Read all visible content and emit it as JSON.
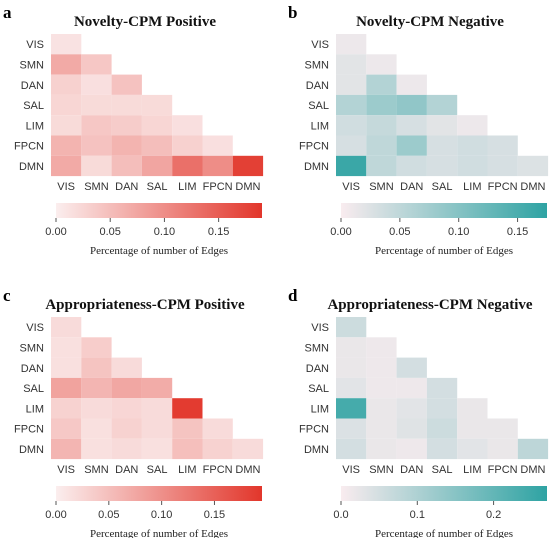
{
  "chart_data": [
    {
      "type": "heatmap",
      "panel_label": "a",
      "title": "Novelty-CPM Positive",
      "rows": [
        "VIS",
        "SMN",
        "DAN",
        "SAL",
        "LIM",
        "FPCN",
        "DMN"
      ],
      "cols": [
        "VIS",
        "SMN",
        "DAN",
        "SAL",
        "LIM",
        "FPCN",
        "DMN"
      ],
      "colorbar": {
        "label": "Percentage of number of Edges",
        "ticks": [
          0.0,
          0.05,
          0.1,
          0.15
        ],
        "tick_labels": [
          "0.00",
          "0.05",
          "0.10",
          "0.15"
        ],
        "range": [
          0,
          0.19
        ],
        "colors": [
          "#fbeeee",
          "#e2362b"
        ]
      },
      "values": [
        [
          0.012
        ],
        [
          0.07,
          0.04
        ],
        [
          0.03,
          0.015,
          0.045
        ],
        [
          0.025,
          0.02,
          0.02,
          0.02
        ],
        [
          0.02,
          0.04,
          0.035,
          0.025,
          0.015
        ],
        [
          0.06,
          0.045,
          0.06,
          0.05,
          0.03,
          0.015
        ],
        [
          0.07,
          0.02,
          0.05,
          0.075,
          0.13,
          0.1,
          0.18
        ]
      ]
    },
    {
      "type": "heatmap",
      "panel_label": "b",
      "title": "Novelty-CPM Negative",
      "rows": [
        "VIS",
        "SMN",
        "DAN",
        "SAL",
        "LIM",
        "FPCN",
        "DMN"
      ],
      "cols": [
        "VIS",
        "SMN",
        "DAN",
        "SAL",
        "LIM",
        "FPCN",
        "DMN"
      ],
      "colorbar": {
        "label": "Percentage of number of Edges",
        "ticks": [
          0.0,
          0.05,
          0.1,
          0.15
        ],
        "tick_labels": [
          "0.00",
          "0.05",
          "0.10",
          "0.15"
        ],
        "range": [
          0,
          0.175
        ],
        "colors": [
          "#f9ecef",
          "#2ea3a3"
        ]
      },
      "values": [
        [
          0.01
        ],
        [
          0.02,
          0.01
        ],
        [
          0.02,
          0.06,
          0.01
        ],
        [
          0.06,
          0.08,
          0.09,
          0.06
        ],
        [
          0.035,
          0.045,
          0.03,
          0.02,
          0.01
        ],
        [
          0.03,
          0.05,
          0.08,
          0.03,
          0.035,
          0.03
        ],
        [
          0.165,
          0.05,
          0.035,
          0.03,
          0.035,
          0.03,
          0.025
        ]
      ]
    },
    {
      "type": "heatmap",
      "panel_label": "c",
      "title": "Appropriateness-CPM Positive",
      "rows": [
        "VIS",
        "SMN",
        "DAN",
        "SAL",
        "LIM",
        "FPCN",
        "DMN"
      ],
      "cols": [
        "VIS",
        "SMN",
        "DAN",
        "SAL",
        "LIM",
        "FPCN",
        "DMN"
      ],
      "colorbar": {
        "label": "Percentage of number of Edges",
        "ticks": [
          0.0,
          0.05,
          0.1,
          0.15
        ],
        "tick_labels": [
          "0.00",
          "0.05",
          "0.10",
          "0.15"
        ],
        "range": [
          0,
          0.195
        ],
        "colors": [
          "#fbeeee",
          "#e2362b"
        ]
      },
      "values": [
        [
          0.02
        ],
        [
          0.015,
          0.035
        ],
        [
          0.015,
          0.045,
          0.02
        ],
        [
          0.08,
          0.06,
          0.075,
          0.07
        ],
        [
          0.03,
          0.02,
          0.025,
          0.02,
          0.19
        ],
        [
          0.04,
          0.015,
          0.03,
          0.02,
          0.045,
          0.02
        ],
        [
          0.06,
          0.015,
          0.02,
          0.015,
          0.05,
          0.03,
          0.02
        ]
      ]
    },
    {
      "type": "heatmap",
      "panel_label": "d",
      "title": "Appropriateness-CPM Negative",
      "rows": [
        "VIS",
        "SMN",
        "DAN",
        "SAL",
        "LIM",
        "FPCN",
        "DMN"
      ],
      "cols": [
        "VIS",
        "SMN",
        "DAN",
        "SAL",
        "LIM",
        "FPCN",
        "DMN"
      ],
      "colorbar": {
        "label": "Percentage of number of Edges",
        "ticks": [
          0.0,
          0.1,
          0.2
        ],
        "tick_labels": [
          "0.0",
          "0.1",
          "0.2"
        ],
        "range": [
          0,
          0.27
        ],
        "colors": [
          "#f9ecef",
          "#2ea3a3"
        ]
      },
      "values": [
        [
          0.06
        ],
        [
          0.02,
          0.015
        ],
        [
          0.02,
          0.015,
          0.05
        ],
        [
          0.03,
          0.015,
          0.015,
          0.05
        ],
        [
          0.24,
          0.02,
          0.03,
          0.05,
          0.02
        ],
        [
          0.04,
          0.02,
          0.035,
          0.06,
          0.02,
          0.02
        ],
        [
          0.05,
          0.02,
          0.015,
          0.05,
          0.03,
          0.02,
          0.08
        ]
      ]
    }
  ]
}
